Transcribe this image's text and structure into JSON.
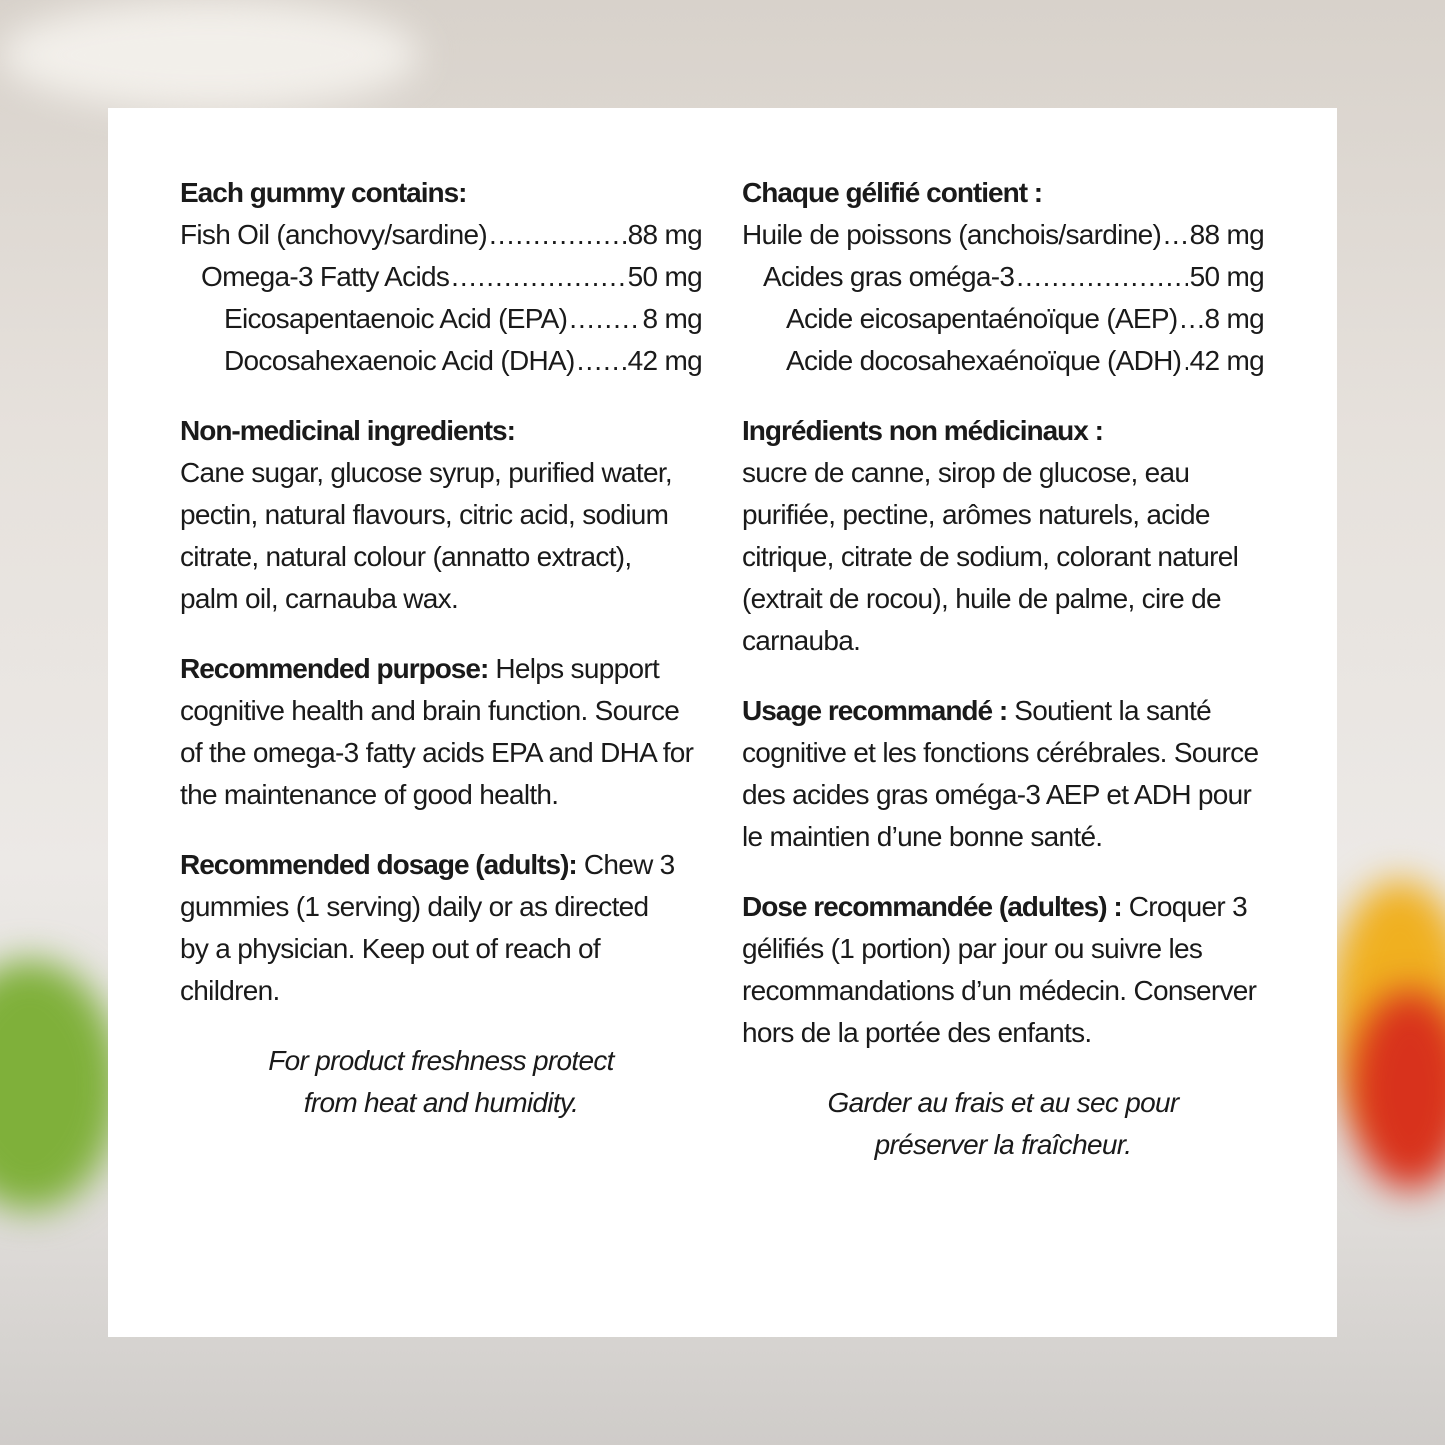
{
  "english": {
    "contains_title": "Each gummy contains:",
    "contents": [
      {
        "label": "Fish Oil (anchovy/sardine)",
        "value": "88 mg",
        "indent": 0
      },
      {
        "label": "Omega-3 Fatty Acids",
        "value": "50 mg",
        "indent": 1
      },
      {
        "label": "Eicosapentaenoic Acid (EPA)",
        "value": "8 mg",
        "indent": 2
      },
      {
        "label": "Docosahexaenoic Acid (DHA)",
        "value": "42 mg",
        "indent": 2
      }
    ],
    "nonmed_title": "Non-medicinal ingredients:",
    "nonmed_text": "Cane sugar, glucose syrup, purified water, pectin, natural flavours, citric acid, sodium citrate, natural colour (annatto extract), palm oil, carnauba wax.",
    "purpose_title": "Recommended purpose:",
    "purpose_text": " Helps support cognitive health and brain function. Source of the omega-3 fatty acids EPA and DHA for the maintenance of good health.",
    "dosage_title": "Recommended dosage (adults):",
    "dosage_text": " Chew 3 gummies (1 serving) daily or as directed by a physician. Keep out of reach of children.",
    "note": "For product freshness protect from heat and humidity."
  },
  "french": {
    "contains_title": "Chaque gélifié contient :",
    "contents": [
      {
        "label": "Huile de poissons (anchois/sardine)",
        "value": "88 mg",
        "indent": 0
      },
      {
        "label": "Acides gras oméga-3",
        "value": "50 mg",
        "indent": 1
      },
      {
        "label": "Acide eicosapentaénoïque (AEP)",
        "value": "8 mg",
        "indent": 2
      },
      {
        "label": "Acide docosahexaénoïque (ADH)",
        "value": "42 mg",
        "indent": 2
      }
    ],
    "nonmed_title": "Ingrédients non médicinaux :",
    "nonmed_text": "sucre de canne, sirop de glucose, eau purifiée, pectine, arômes naturels, acide citrique, citrate de sodium, colorant naturel (extrait de rocou), huile de palme, cire de carnauba.",
    "purpose_title": "Usage recommandé :",
    "purpose_text": " Soutient la santé cognitive et les fonctions cérébrales. Source des acides gras oméga-3 AEP et ADH pour le maintien d’une bonne santé.",
    "dosage_title": "Dose recommandée (adultes) :",
    "dosage_text": " Croquer 3 gélifiés (1 portion) par jour ou suivre les recommandations d’un médecin. Conserver hors de la portée des enfants.",
    "note": "Garder au frais et au sec pour préserver la fraîcheur."
  }
}
